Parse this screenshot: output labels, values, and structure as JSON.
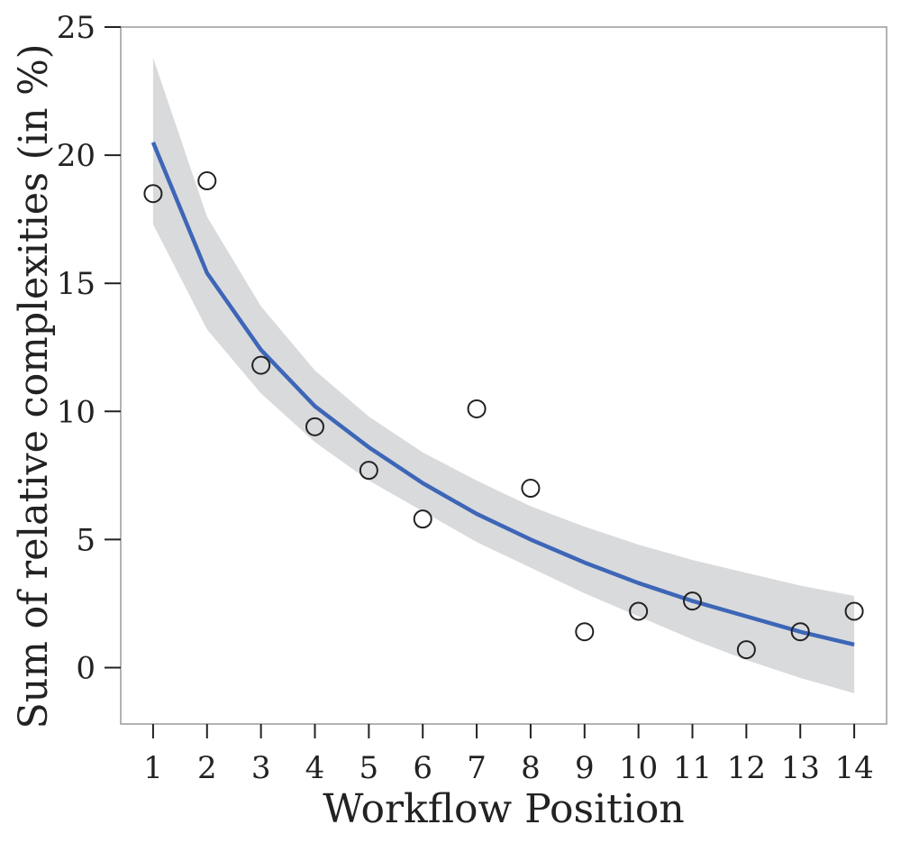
{
  "chart_data": {
    "type": "scatter",
    "xlabel": "Workflow Position",
    "ylabel": "Sum of relative complexities (in %)",
    "xlim": [
      0.4,
      14.6
    ],
    "ylim": [
      -2.2,
      25
    ],
    "x_ticks": [
      1,
      2,
      3,
      4,
      5,
      6,
      7,
      8,
      9,
      10,
      11,
      12,
      13,
      14
    ],
    "y_ticks": [
      0,
      5,
      10,
      15,
      20,
      25
    ],
    "grid": false,
    "series": [
      {
        "kind": "points",
        "x": [
          1,
          2,
          3,
          4,
          5,
          6,
          7,
          8,
          9,
          10,
          11,
          12,
          13,
          14
        ],
        "y": [
          18.5,
          19.0,
          11.8,
          9.4,
          7.7,
          5.8,
          10.1,
          7.0,
          1.4,
          2.2,
          2.6,
          0.7,
          1.4,
          2.2
        ]
      },
      {
        "kind": "fit-line",
        "x": [
          1,
          2,
          3,
          4,
          5,
          6,
          7,
          8,
          9,
          10,
          11,
          12,
          13,
          14
        ],
        "y": [
          20.5,
          15.4,
          12.4,
          10.2,
          8.6,
          7.2,
          6.0,
          5.0,
          4.1,
          3.3,
          2.6,
          2.0,
          1.4,
          0.9
        ]
      },
      {
        "kind": "confidence-band",
        "x": [
          1,
          2,
          3,
          4,
          5,
          6,
          7,
          8,
          9,
          10,
          11,
          12,
          13,
          14
        ],
        "lower": [
          17.3,
          13.2,
          10.7,
          8.8,
          7.3,
          6.1,
          4.9,
          3.9,
          2.9,
          2.0,
          1.1,
          0.3,
          -0.4,
          -1.0
        ],
        "upper": [
          23.8,
          17.6,
          14.1,
          11.6,
          9.8,
          8.4,
          7.3,
          6.3,
          5.5,
          4.8,
          4.2,
          3.7,
          3.2,
          2.8
        ]
      }
    ],
    "colors": {
      "line": "#3d66b7",
      "band": "#d9dadc",
      "points": "#222222",
      "frame": "#9a9a9a"
    }
  }
}
